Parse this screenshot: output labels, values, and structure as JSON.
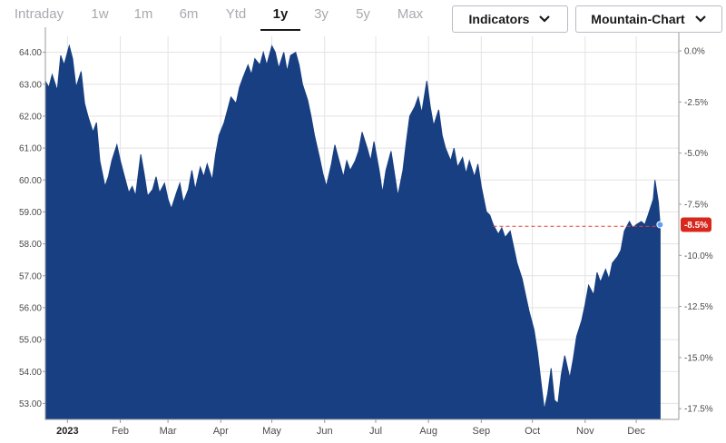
{
  "tabs": [
    {
      "label": "Intraday",
      "active": false
    },
    {
      "label": "1w",
      "active": false
    },
    {
      "label": "1m",
      "active": false
    },
    {
      "label": "6m",
      "active": false
    },
    {
      "label": "Ytd",
      "active": false
    },
    {
      "label": "1y",
      "active": true
    },
    {
      "label": "3y",
      "active": false
    },
    {
      "label": "5y",
      "active": false
    },
    {
      "label": "Max",
      "active": false
    }
  ],
  "controls": {
    "indicators_label": "Indicators",
    "chart_type_label": "Mountain-Chart"
  },
  "colors": {
    "fill": "#173f82",
    "reference_line": "#e0463a",
    "badge": "#d8281e",
    "grid": "#e3e3e3",
    "active_tab": "#1a1a1a",
    "inactive_tab": "#a8aab0"
  },
  "chart_data": {
    "type": "area",
    "title": "",
    "xlabel": "",
    "ylabel": "",
    "ylim": [
      52.5,
      64.5
    ],
    "y_ticks": [
      53.0,
      54.0,
      55.0,
      56.0,
      57.0,
      58.0,
      59.0,
      60.0,
      61.0,
      62.0,
      63.0,
      64.0
    ],
    "y_tick_labels": [
      "53.00",
      "54.00",
      "55.00",
      "56.00",
      "57.00",
      "58.00",
      "59.00",
      "60.00",
      "61.00",
      "62.00",
      "63.00",
      "64.00"
    ],
    "y2_ticks": [
      0.0,
      -2.5,
      -5.0,
      -7.5,
      -10.0,
      -12.5,
      -15.0,
      -17.5
    ],
    "y2_tick_labels": [
      "0.0%",
      "-2.5%",
      "-5.0%",
      "-7.5%",
      "-10.0%",
      "-12.5%",
      "-15.0%",
      "-17.5%"
    ],
    "xlim": [
      "2022-12-19",
      "2023-12-26"
    ],
    "x_ticks": [
      {
        "label": "2023",
        "date": "2023-01-01",
        "bold": true
      },
      {
        "label": "Feb",
        "date": "2023-02-01"
      },
      {
        "label": "Mar",
        "date": "2023-03-01"
      },
      {
        "label": "Apr",
        "date": "2023-04-01"
      },
      {
        "label": "May",
        "date": "2023-05-01"
      },
      {
        "label": "Jun",
        "date": "2023-06-01"
      },
      {
        "label": "Jul",
        "date": "2023-07-01"
      },
      {
        "label": "Aug",
        "date": "2023-08-01"
      },
      {
        "label": "Sep",
        "date": "2023-09-01"
      },
      {
        "label": "Oct",
        "date": "2023-10-01"
      },
      {
        "label": "Nov",
        "date": "2023-11-01"
      },
      {
        "label": "Dec",
        "date": "2023-12-01"
      }
    ],
    "grid": true,
    "reference_value": 58.55,
    "reference_start_date": "2023-09-08",
    "current_change_label": "-8.5%",
    "series": [
      {
        "points": [
          [
            "2022-12-19",
            63.1
          ],
          [
            "2022-12-21",
            62.9
          ],
          [
            "2022-12-23",
            63.3
          ],
          [
            "2022-12-26",
            62.8
          ],
          [
            "2022-12-28",
            63.9
          ],
          [
            "2022-12-30",
            63.6
          ],
          [
            "2023-01-02",
            64.2
          ],
          [
            "2023-01-04",
            63.8
          ],
          [
            "2023-01-06",
            62.9
          ],
          [
            "2023-01-09",
            63.4
          ],
          [
            "2023-01-11",
            62.4
          ],
          [
            "2023-01-13",
            62.0
          ],
          [
            "2023-01-16",
            61.5
          ],
          [
            "2023-01-18",
            61.8
          ],
          [
            "2023-01-20",
            60.6
          ],
          [
            "2023-01-23",
            59.8
          ],
          [
            "2023-01-25",
            60.1
          ],
          [
            "2023-01-27",
            60.6
          ],
          [
            "2023-01-30",
            61.1
          ],
          [
            "2023-02-01",
            60.6
          ],
          [
            "2023-02-03",
            60.2
          ],
          [
            "2023-02-06",
            59.6
          ],
          [
            "2023-02-08",
            59.8
          ],
          [
            "2023-02-10",
            59.5
          ],
          [
            "2023-02-13",
            60.8
          ],
          [
            "2023-02-15",
            60.2
          ],
          [
            "2023-02-17",
            59.5
          ],
          [
            "2023-02-20",
            59.7
          ],
          [
            "2023-02-22",
            60.1
          ],
          [
            "2023-02-24",
            59.6
          ],
          [
            "2023-02-27",
            59.9
          ],
          [
            "2023-03-01",
            59.4
          ],
          [
            "2023-03-03",
            59.1
          ],
          [
            "2023-03-06",
            59.6
          ],
          [
            "2023-03-08",
            59.9
          ],
          [
            "2023-03-10",
            59.3
          ],
          [
            "2023-03-13",
            59.7
          ],
          [
            "2023-03-15",
            60.3
          ],
          [
            "2023-03-17",
            59.7
          ],
          [
            "2023-03-20",
            60.4
          ],
          [
            "2023-03-22",
            60.1
          ],
          [
            "2023-03-24",
            60.5
          ],
          [
            "2023-03-27",
            60.0
          ],
          [
            "2023-03-29",
            60.8
          ],
          [
            "2023-03-31",
            61.4
          ],
          [
            "2023-04-03",
            61.8
          ],
          [
            "2023-04-05",
            62.2
          ],
          [
            "2023-04-07",
            62.6
          ],
          [
            "2023-04-10",
            62.4
          ],
          [
            "2023-04-12",
            62.9
          ],
          [
            "2023-04-14",
            63.2
          ],
          [
            "2023-04-17",
            63.6
          ],
          [
            "2023-04-19",
            63.3
          ],
          [
            "2023-04-21",
            63.8
          ],
          [
            "2023-04-24",
            63.6
          ],
          [
            "2023-04-26",
            64.0
          ],
          [
            "2023-04-28",
            63.6
          ],
          [
            "2023-05-01",
            64.2
          ],
          [
            "2023-05-03",
            64.0
          ],
          [
            "2023-05-05",
            63.5
          ],
          [
            "2023-05-08",
            64.0
          ],
          [
            "2023-05-10",
            63.4
          ],
          [
            "2023-05-12",
            63.9
          ],
          [
            "2023-05-15",
            64.0
          ],
          [
            "2023-05-17",
            63.6
          ],
          [
            "2023-05-19",
            63.0
          ],
          [
            "2023-05-22",
            62.5
          ],
          [
            "2023-05-24",
            62.0
          ],
          [
            "2023-05-26",
            61.4
          ],
          [
            "2023-05-29",
            60.7
          ],
          [
            "2023-05-31",
            60.2
          ],
          [
            "2023-06-02",
            59.8
          ],
          [
            "2023-06-05",
            60.5
          ],
          [
            "2023-06-07",
            61.1
          ],
          [
            "2023-06-09",
            60.7
          ],
          [
            "2023-06-12",
            60.1
          ],
          [
            "2023-06-14",
            60.6
          ],
          [
            "2023-06-16",
            60.3
          ],
          [
            "2023-06-19",
            60.6
          ],
          [
            "2023-06-21",
            60.9
          ],
          [
            "2023-06-23",
            61.5
          ],
          [
            "2023-06-26",
            61.0
          ],
          [
            "2023-06-28",
            60.6
          ],
          [
            "2023-06-30",
            61.2
          ],
          [
            "2023-07-03",
            60.3
          ],
          [
            "2023-07-05",
            59.6
          ],
          [
            "2023-07-07",
            60.3
          ],
          [
            "2023-07-10",
            60.9
          ],
          [
            "2023-07-12",
            60.2
          ],
          [
            "2023-07-14",
            59.5
          ],
          [
            "2023-07-17",
            60.3
          ],
          [
            "2023-07-19",
            61.2
          ],
          [
            "2023-07-21",
            62.0
          ],
          [
            "2023-07-24",
            62.3
          ],
          [
            "2023-07-26",
            62.6
          ],
          [
            "2023-07-28",
            62.1
          ],
          [
            "2023-07-31",
            63.1
          ],
          [
            "2023-08-02",
            62.3
          ],
          [
            "2023-08-04",
            61.7
          ],
          [
            "2023-08-07",
            62.2
          ],
          [
            "2023-08-09",
            61.4
          ],
          [
            "2023-08-11",
            61.0
          ],
          [
            "2023-08-14",
            60.6
          ],
          [
            "2023-08-16",
            61.0
          ],
          [
            "2023-08-18",
            60.4
          ],
          [
            "2023-08-21",
            60.7
          ],
          [
            "2023-08-23",
            60.2
          ],
          [
            "2023-08-25",
            60.6
          ],
          [
            "2023-08-28",
            60.1
          ],
          [
            "2023-08-30",
            60.5
          ],
          [
            "2023-09-01",
            59.8
          ],
          [
            "2023-09-04",
            59.0
          ],
          [
            "2023-09-06",
            58.9
          ],
          [
            "2023-09-08",
            58.6
          ],
          [
            "2023-09-11",
            58.3
          ],
          [
            "2023-09-13",
            58.5
          ],
          [
            "2023-09-15",
            58.2
          ],
          [
            "2023-09-18",
            58.4
          ],
          [
            "2023-09-20",
            57.9
          ],
          [
            "2023-09-22",
            57.4
          ],
          [
            "2023-09-25",
            56.9
          ],
          [
            "2023-09-27",
            56.4
          ],
          [
            "2023-09-29",
            55.9
          ],
          [
            "2023-10-02",
            55.3
          ],
          [
            "2023-10-04",
            54.6
          ],
          [
            "2023-10-06",
            53.7
          ],
          [
            "2023-10-08",
            52.8
          ],
          [
            "2023-10-10",
            53.3
          ],
          [
            "2023-10-12",
            54.1
          ],
          [
            "2023-10-14",
            53.1
          ],
          [
            "2023-10-16",
            53.0
          ],
          [
            "2023-10-18",
            53.9
          ],
          [
            "2023-10-20",
            54.5
          ],
          [
            "2023-10-23",
            53.8
          ],
          [
            "2023-10-25",
            54.4
          ],
          [
            "2023-10-27",
            55.1
          ],
          [
            "2023-10-30",
            55.6
          ],
          [
            "2023-11-01",
            56.1
          ],
          [
            "2023-11-03",
            56.7
          ],
          [
            "2023-11-06",
            56.4
          ],
          [
            "2023-11-08",
            57.1
          ],
          [
            "2023-11-10",
            56.8
          ],
          [
            "2023-11-13",
            57.2
          ],
          [
            "2023-11-15",
            56.9
          ],
          [
            "2023-11-17",
            57.4
          ],
          [
            "2023-11-20",
            57.6
          ],
          [
            "2023-11-22",
            57.8
          ],
          [
            "2023-11-24",
            58.4
          ],
          [
            "2023-11-27",
            58.7
          ],
          [
            "2023-11-29",
            58.5
          ],
          [
            "2023-12-01",
            58.6
          ],
          [
            "2023-12-04",
            58.7
          ],
          [
            "2023-12-06",
            58.6
          ],
          [
            "2023-12-08",
            58.9
          ],
          [
            "2023-12-11",
            59.4
          ],
          [
            "2023-12-12",
            60.0
          ],
          [
            "2023-12-14",
            59.3
          ],
          [
            "2023-12-15",
            58.6
          ]
        ]
      }
    ]
  }
}
